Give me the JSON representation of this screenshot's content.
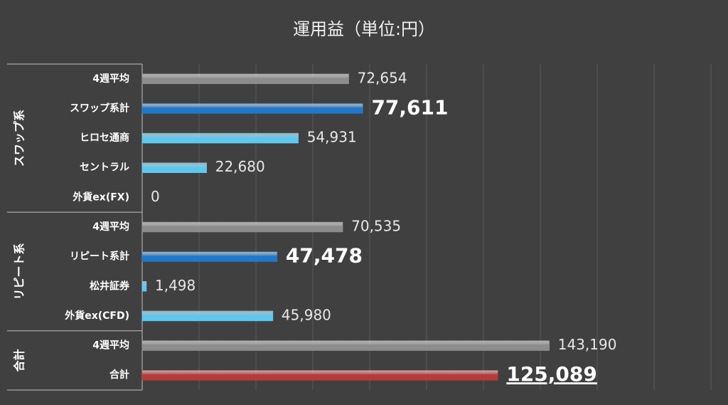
{
  "chart_data": {
    "type": "bar",
    "title": "運用益（単位:円）",
    "xlim": [
      0,
      200000
    ],
    "xticks": [
      0,
      20000,
      40000,
      60000,
      80000,
      100000,
      120000,
      140000,
      160000,
      180000,
      200000
    ],
    "grid": true,
    "groups": [
      {
        "label": "スワップ系",
        "categories": [
          "4週平均",
          "スワップ系計",
          "ヒロセ通商",
          "セントラル",
          "外貨ex(FX)"
        ],
        "values": [
          72654,
          77611,
          54931,
          22680,
          0
        ],
        "value_labels": [
          "72,654",
          "77,611",
          "54,931",
          "22,680",
          "0"
        ],
        "colors": [
          "#8c8c8c",
          "#1f78c8",
          "#5cc8f0",
          "#5cc8f0",
          "#5cc8f0"
        ],
        "label_weights": [
          "normal",
          "bold",
          "normal",
          "normal",
          "normal"
        ]
      },
      {
        "label": "リピート系",
        "categories": [
          "4週平均",
          "リピート系計",
          "松井証券",
          "外貨ex(CFD)"
        ],
        "values": [
          70535,
          47478,
          1498,
          45980
        ],
        "value_labels": [
          "70,535",
          "47,478",
          "1,498",
          "45,980"
        ],
        "colors": [
          "#8c8c8c",
          "#1f78c8",
          "#5cc8f0",
          "#5cc8f0"
        ],
        "label_weights": [
          "normal",
          "bold",
          "normal",
          "normal"
        ]
      },
      {
        "label": "合計",
        "categories": [
          "4週平均",
          "合計"
        ],
        "values": [
          143190,
          125089
        ],
        "value_labels": [
          "143,190",
          "125,089"
        ],
        "colors": [
          "#8c8c8c",
          "#b83a3a"
        ],
        "label_weights": [
          "normal",
          "bold-underline"
        ]
      }
    ]
  }
}
